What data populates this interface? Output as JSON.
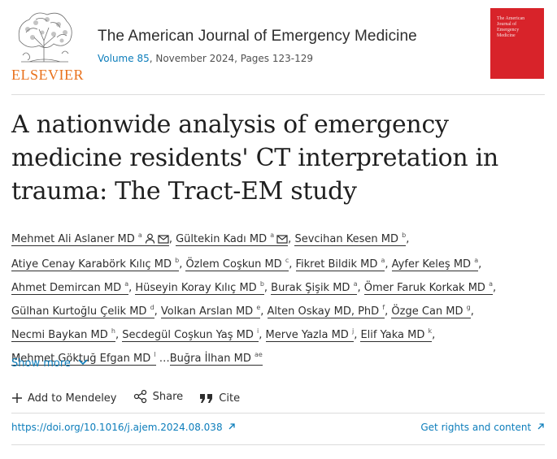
{
  "header": {
    "publisher": "ELSEVIER",
    "journal_title": "The American Journal of Emergency Medicine",
    "volume_link": "Volume 85",
    "volume_rest": ", November 2024, Pages 123-129",
    "cover_text": "The American Journal of Emergency Medicine"
  },
  "article": {
    "title": "A nationwide analysis of emergency medicine residents' CT interpretation in trauma: The Tract-EM study"
  },
  "authors": [
    {
      "name": "Mehmet Ali Aslaner MD",
      "sup": "a",
      "person": true,
      "mail": true
    },
    {
      "name": "Gültekin Kadı MD",
      "sup": "a",
      "mail": true
    },
    {
      "name": "Sevcihan Kesen MD",
      "sup": "b"
    },
    {
      "name": "Atiye Cenay Karabörk Kılıç MD",
      "sup": "b"
    },
    {
      "name": "Özlem Coşkun MD",
      "sup": "c"
    },
    {
      "name": "Fikret Bildik MD",
      "sup": "a"
    },
    {
      "name": "Ayfer Keleş MD",
      "sup": "a"
    },
    {
      "name": "Ahmet Demircan MD",
      "sup": "a"
    },
    {
      "name": "Hüseyin Koray Kılıç MD",
      "sup": "b"
    },
    {
      "name": "Burak Şişik MD",
      "sup": "a"
    },
    {
      "name": "Ömer Faruk Korkak MD",
      "sup": "a"
    },
    {
      "name": "Gülhan Kurtoğlu Çelik MD",
      "sup": "d"
    },
    {
      "name": "Volkan Arslan MD",
      "sup": "e"
    },
    {
      "name": "Alten Oskay MD, PhD",
      "sup": "f"
    },
    {
      "name": "Özge Can MD",
      "sup": "g"
    },
    {
      "name": "Necmi Baykan MD",
      "sup": "h"
    },
    {
      "name": "Secdegül Coşkun Yaş MD",
      "sup": "i"
    },
    {
      "name": "Merve Yazla MD",
      "sup": "j"
    },
    {
      "name": "Elif Yaka MD",
      "sup": "k"
    },
    {
      "name": "Mehmet Göktuğ Efgan MD",
      "sup": "l"
    },
    {
      "name": "Buğra İlhan MD",
      "sup": "ae",
      "prefix": "…"
    }
  ],
  "show_more": "Show more",
  "actions": {
    "mendeley": "Add to Mendeley",
    "share": "Share",
    "cite": "Cite"
  },
  "links": {
    "doi": "https://doi.org/10.1016/j.ajem.2024.08.038",
    "rights": "Get rights and content"
  },
  "colors": {
    "link": "#0c7dbb",
    "publisher_orange": "#e9711c",
    "cover_red": "#d8232a"
  }
}
